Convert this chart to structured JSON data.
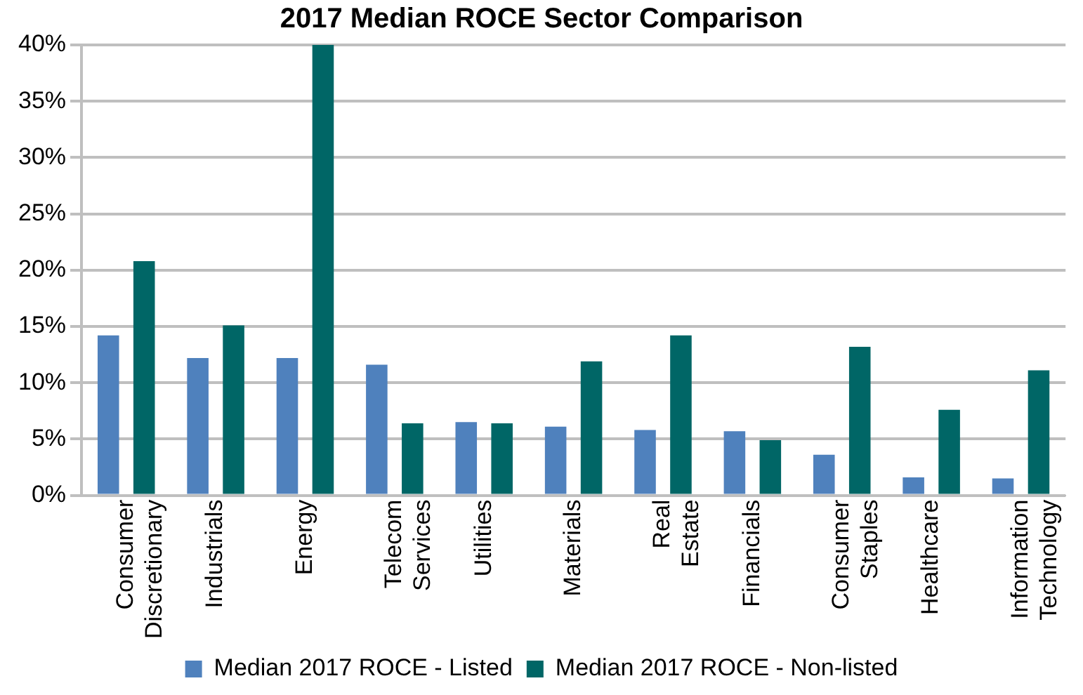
{
  "chart_data": {
    "type": "bar",
    "title": "2017 Median ROCE Sector Comparison",
    "categories": [
      "Consumer Discretionary",
      "Industrials",
      "Energy",
      "Telecom Services",
      "Utilities",
      "Materials",
      "Real Estate",
      "Financials",
      "Consumer Staples",
      "Healthcare",
      "Information Technology"
    ],
    "series": [
      {
        "name": "Median 2017 ROCE - Listed",
        "color": "#4f81bd",
        "values": [
          14.2,
          12.2,
          12.2,
          11.6,
          6.5,
          6.1,
          5.8,
          5.7,
          3.6,
          1.6,
          1.5
        ]
      },
      {
        "name": "Median 2017 ROCE - Non-listed",
        "color": "#006666",
        "values": [
          20.8,
          15.1,
          40,
          6.4,
          6.4,
          11.9,
          14.2,
          4.9,
          13.2,
          7.6,
          11.1
        ]
      }
    ],
    "ylim": [
      0,
      40
    ],
    "yticks": [
      {
        "value": 0,
        "label": "0%"
      },
      {
        "value": 5,
        "label": "5%"
      },
      {
        "value": 10,
        "label": "10%"
      },
      {
        "value": 15,
        "label": "15%"
      },
      {
        "value": 20,
        "label": "20%"
      },
      {
        "value": 25,
        "label": "25%"
      },
      {
        "value": 30,
        "label": "30%"
      },
      {
        "value": 35,
        "label": "35%"
      },
      {
        "value": 40,
        "label": "40%"
      }
    ],
    "grid": "y",
    "legend": "bottom"
  }
}
